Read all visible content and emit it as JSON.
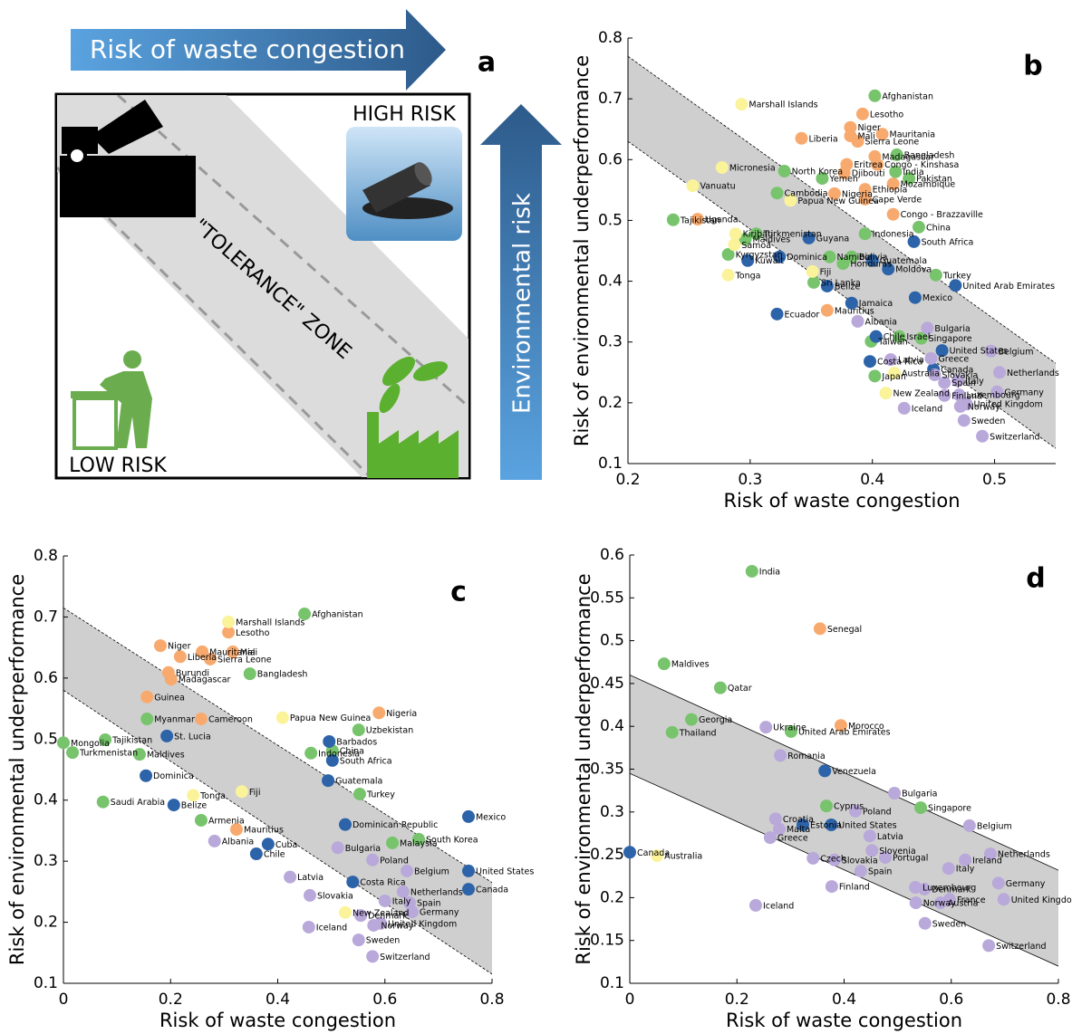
{
  "diagram": {
    "top_arrow": "Risk of waste congestion",
    "panel_label": "a",
    "high": "HIGH RISK",
    "low": "LOW RISK",
    "zone": "\"TOLERANCE\" ZONE",
    "side_arrow": "Environmental risk"
  },
  "chart_data": [
    {
      "type": "scatter",
      "panel_label": "b",
      "xlabel": "Risk of waste congestion",
      "ylabel": "Risk of environmental underperformance",
      "xlim": [
        0.2,
        0.55
      ],
      "ylim": [
        0.1,
        0.8
      ],
      "xticks": [
        0.2,
        0.3,
        0.4,
        0.5
      ],
      "yticks": [
        0.1,
        0.2,
        0.3,
        0.4,
        0.5,
        0.6,
        0.7,
        0.8
      ],
      "band": {
        "upper": [
          [
            0.2,
            0.77
          ],
          [
            0.55,
            0.265
          ]
        ],
        "lower": [
          [
            0.2,
            0.63
          ],
          [
            0.55,
            0.125
          ]
        ],
        "line_style": "dashed"
      },
      "series": [
        {
          "color": "#77c46c",
          "labels": [
            "Afghanistan",
            "Bangladesh",
            "North Korea",
            "India",
            "Yemen",
            "Pakistan",
            "Cambodia",
            "Tajikistan",
            "China",
            "Indonesia",
            "Turkmenistan",
            "Maldives",
            "Kyrgyzstan",
            "Namibia",
            "Bolivia",
            "Honduras",
            "Turkey",
            "Sri Lanka",
            "Singapore",
            "Israel",
            "Taiwan",
            "Japan"
          ],
          "x": [
            0.402,
            0.42,
            0.328,
            0.419,
            0.359,
            0.43,
            0.322,
            0.237,
            0.438,
            0.394,
            0.305,
            0.296,
            0.282,
            0.365,
            0.383,
            0.376,
            0.452,
            0.352,
            0.44,
            0.422,
            0.399,
            0.402
          ],
          "y": [
            0.705,
            0.608,
            0.581,
            0.58,
            0.569,
            0.569,
            0.545,
            0.501,
            0.489,
            0.478,
            0.478,
            0.469,
            0.444,
            0.44,
            0.44,
            0.429,
            0.41,
            0.398,
            0.306,
            0.309,
            0.301,
            0.244
          ]
        },
        {
          "color": "#f8aa6e",
          "labels": [
            "Lesotho",
            "Niger",
            "Mali",
            "Mauritania",
            "Sierra Leone",
            "Liberia",
            "Madagascar",
            "Eritrea",
            "Congo - Kinshasa",
            "Djibouti",
            "Mozambique",
            "Ethiopia",
            "Nigeria",
            "Cape Verde",
            "Uganda",
            "Congo - Brazzaville",
            "Mauritius"
          ],
          "x": [
            0.392,
            0.382,
            0.382,
            0.408,
            0.388,
            0.342,
            0.402,
            0.379,
            0.404,
            0.377,
            0.417,
            0.394,
            0.369,
            0.394,
            0.257,
            0.417,
            0.363
          ],
          "y": [
            0.675,
            0.653,
            0.639,
            0.642,
            0.63,
            0.635,
            0.605,
            0.592,
            0.592,
            0.578,
            0.56,
            0.551,
            0.544,
            0.535,
            0.502,
            0.51,
            0.352
          ]
        },
        {
          "color": "#2c63a9",
          "labels": [
            "Guyana",
            "South Africa",
            "Kuwait",
            "Dominica",
            "Guatemala",
            "Moldova",
            "United Arab Emirates",
            "Belize",
            "Mexico",
            "Jamaica",
            "Ecuador",
            "Chile",
            "United States",
            "Costa Rica",
            "Canada"
          ],
          "x": [
            0.348,
            0.434,
            0.298,
            0.324,
            0.4,
            0.413,
            0.468,
            0.363,
            0.435,
            0.383,
            0.322,
            0.403,
            0.457,
            0.398,
            0.45
          ],
          "y": [
            0.471,
            0.465,
            0.434,
            0.44,
            0.434,
            0.42,
            0.393,
            0.392,
            0.373,
            0.364,
            0.346,
            0.309,
            0.286,
            0.268,
            0.255
          ]
        },
        {
          "color": "#fbf39a",
          "labels": [
            "Marshall Islands",
            "Micronesia",
            "Vanuatu",
            "Papua New Guinea",
            "Kiribati",
            "Samoa",
            "Tonga",
            "Fiji",
            "Australia",
            "New Zealand"
          ],
          "x": [
            0.293,
            0.277,
            0.253,
            0.333,
            0.288,
            0.287,
            0.282,
            0.351,
            0.418,
            0.411
          ],
          "y": [
            0.691,
            0.587,
            0.557,
            0.533,
            0.478,
            0.46,
            0.41,
            0.416,
            0.249,
            0.216
          ]
        },
        {
          "color": "#b9a8da",
          "labels": [
            "Albania",
            "Bulgaria",
            "Belgium",
            "Latvia",
            "Greece",
            "Netherlands",
            "Slovakia",
            "Italy",
            "Spain",
            "Finland",
            "Germany",
            "Luxembourg",
            "United Kingdom",
            "Iceland",
            "Norway",
            "Sweden",
            "Switzerland"
          ],
          "x": [
            0.388,
            0.445,
            0.497,
            0.415,
            0.448,
            0.504,
            0.451,
            0.47,
            0.459,
            0.459,
            0.502,
            0.471,
            0.477,
            0.426,
            0.472,
            0.475,
            0.49
          ],
          "y": [
            0.334,
            0.323,
            0.285,
            0.271,
            0.273,
            0.25,
            0.246,
            0.236,
            0.233,
            0.212,
            0.218,
            0.213,
            0.198,
            0.191,
            0.194,
            0.171,
            0.145
          ]
        }
      ]
    },
    {
      "type": "scatter",
      "panel_label": "c",
      "xlabel": "Risk of waste congestion",
      "ylabel": "Risk of environmental underperformance",
      "xlim": [
        0,
        0.8
      ],
      "ylim": [
        0.1,
        0.8
      ],
      "xticks": [
        0,
        0.2,
        0.4,
        0.6,
        0.8
      ],
      "yticks": [
        0.1,
        0.2,
        0.3,
        0.4,
        0.5,
        0.6,
        0.7,
        0.8
      ],
      "band": {
        "upper": [
          [
            0,
            0.715
          ],
          [
            0.8,
            0.265
          ]
        ],
        "lower": [
          [
            0,
            0.58
          ],
          [
            0.8,
            0.115
          ]
        ],
        "line_style": "dashed"
      },
      "series": [
        {
          "color": "#77c46c",
          "labels": [
            "Afghanistan",
            "Bangladesh",
            "Myanmar",
            "Uzbekistan",
            "Mongolia",
            "Tajikistan",
            "Turkmenistan",
            "Maldives",
            "China",
            "Indonesia",
            "Turkey",
            "Saudi Arabia",
            "Armenia",
            "South Korea",
            "Malaysia"
          ],
          "x": [
            0.45,
            0.348,
            0.156,
            0.551,
            0,
            0.078,
            0.017,
            0.142,
            0.502,
            0.462,
            0.553,
            0.074,
            0.257,
            0.663,
            0.614
          ],
          "y": [
            0.705,
            0.607,
            0.533,
            0.515,
            0.494,
            0.499,
            0.478,
            0.475,
            0.481,
            0.477,
            0.41,
            0.397,
            0.367,
            0.336,
            0.33
          ]
        },
        {
          "color": "#f8aa6e",
          "labels": [
            "Lesotho",
            "Niger",
            "Mauritania",
            "Mali",
            "Liberia",
            "Sierra Leone",
            "Burundi",
            "Madagascar",
            "Guinea",
            "Nigeria",
            "Cameroon",
            "Mauritius"
          ],
          "x": [
            0.308,
            0.181,
            0.259,
            0.316,
            0.218,
            0.274,
            0.196,
            0.201,
            0.156,
            0.589,
            0.257,
            0.323
          ],
          "y": [
            0.675,
            0.653,
            0.643,
            0.643,
            0.635,
            0.631,
            0.609,
            0.598,
            0.569,
            0.543,
            0.533,
            0.352
          ]
        },
        {
          "color": "#2c63a9",
          "labels": [
            "St. Lucia",
            "Barbados",
            "South Africa",
            "Dominica",
            "Guatemala",
            "Belize",
            "Mexico",
            "Dominican Republic",
            "Cuba",
            "Chile",
            "United States",
            "Canada",
            "Costa Rica"
          ],
          "x": [
            0.193,
            0.496,
            0.502,
            0.154,
            0.494,
            0.206,
            0.756,
            0.526,
            0.382,
            0.36,
            0.756,
            0.756,
            0.54
          ],
          "y": [
            0.505,
            0.496,
            0.465,
            0.44,
            0.432,
            0.392,
            0.373,
            0.36,
            0.328,
            0.312,
            0.284,
            0.254,
            0.266
          ]
        },
        {
          "color": "#fbf39a",
          "labels": [
            "Marshall Islands",
            "Papua New Guinea",
            "Tonga",
            "Fiji",
            "New Zealand"
          ],
          "x": [
            0.308,
            0.409,
            0.242,
            0.333,
            0.526
          ],
          "y": [
            0.692,
            0.535,
            0.408,
            0.414,
            0.216
          ]
        },
        {
          "color": "#b9a8da",
          "labels": [
            "Albania",
            "Bulgaria",
            "Poland",
            "Belgium",
            "Latvia",
            "Netherlands",
            "Slovakia",
            "Italy",
            "Spain",
            "Germany",
            "Denmark",
            "United Kingdom",
            "Norway",
            "Iceland",
            "Sweden",
            "Switzerland"
          ],
          "x": [
            0.282,
            0.512,
            0.577,
            0.641,
            0.423,
            0.634,
            0.46,
            0.6,
            0.646,
            0.651,
            0.555,
            0.592,
            0.579,
            0.458,
            0.551,
            0.577
          ],
          "y": [
            0.333,
            0.322,
            0.302,
            0.284,
            0.274,
            0.25,
            0.244,
            0.235,
            0.232,
            0.217,
            0.211,
            0.198,
            0.195,
            0.192,
            0.171,
            0.144
          ]
        }
      ]
    },
    {
      "type": "scatter",
      "panel_label": "d",
      "xlabel": "Risk of waste congestion",
      "ylabel": "Risk of environmental underperformance",
      "xlim": [
        0,
        0.8
      ],
      "ylim": [
        0.1,
        0.6
      ],
      "xticks": [
        0,
        0.2,
        0.4,
        0.6,
        0.8
      ],
      "yticks": [
        0.1,
        0.15,
        0.2,
        0.25,
        0.3,
        0.35,
        0.4,
        0.45,
        0.5,
        0.55,
        0.6
      ],
      "band": {
        "upper": [
          [
            0,
            0.46
          ],
          [
            0.8,
            0.232
          ]
        ],
        "lower": [
          [
            0,
            0.345
          ],
          [
            0.8,
            0.12
          ]
        ],
        "line_style": "solid"
      },
      "series": [
        {
          "color": "#77c46c",
          "labels": [
            "India",
            "Maldives",
            "Qatar",
            "Georgia",
            "Thailand",
            "United Arab Emirates",
            "Cyprus",
            "Singapore"
          ],
          "x": [
            0.228,
            0.064,
            0.169,
            0.115,
            0.079,
            0.301,
            0.367,
            0.543
          ],
          "y": [
            0.581,
            0.473,
            0.445,
            0.408,
            0.393,
            0.394,
            0.307,
            0.305
          ]
        },
        {
          "color": "#f8aa6e",
          "labels": [
            "Senegal",
            "Morocco"
          ],
          "x": [
            0.355,
            0.394
          ],
          "y": [
            0.514,
            0.401
          ]
        },
        {
          "color": "#2c63a9",
          "labels": [
            "Venezuela",
            "Estonia",
            "United States",
            "Canada"
          ],
          "x": [
            0.364,
            0.323,
            0.376,
            0
          ],
          "y": [
            0.348,
            0.285,
            0.285,
            0.253
          ]
        },
        {
          "color": "#fbf39a",
          "labels": [
            "Australia"
          ],
          "x": [
            0.051
          ],
          "y": [
            0.249
          ]
        },
        {
          "color": "#b9a8da",
          "labels": [
            "Ukraine",
            "Romania",
            "Bulgaria",
            "Poland",
            "Croatia",
            "Belgium",
            "Malta",
            "Latvia",
            "Greece",
            "Slovenia",
            "Netherlands",
            "Portugal",
            "Czech",
            "Slovakia",
            "Ireland",
            "Spain",
            "Italy",
            "Germany",
            "Finland",
            "Luxembourg",
            "Denmark",
            "France",
            "United Kingdom",
            "Norway",
            "Austria",
            "Iceland",
            "Sweden",
            "Switzerland"
          ],
          "x": [
            0.254,
            0.281,
            0.494,
            0.421,
            0.272,
            0.634,
            0.279,
            0.448,
            0.262,
            0.452,
            0.673,
            0.477,
            0.342,
            0.382,
            0.626,
            0.431,
            0.595,
            0.688,
            0.377,
            0.533,
            0.55,
            0.597,
            0.698,
            0.534,
            0.58,
            0.235,
            0.551,
            0.67
          ],
          "y": [
            0.399,
            0.366,
            0.322,
            0.301,
            0.292,
            0.284,
            0.28,
            0.272,
            0.27,
            0.255,
            0.251,
            0.247,
            0.246,
            0.244,
            0.244,
            0.231,
            0.234,
            0.217,
            0.213,
            0.212,
            0.21,
            0.198,
            0.198,
            0.194,
            0.194,
            0.191,
            0.17,
            0.144
          ]
        }
      ]
    }
  ]
}
